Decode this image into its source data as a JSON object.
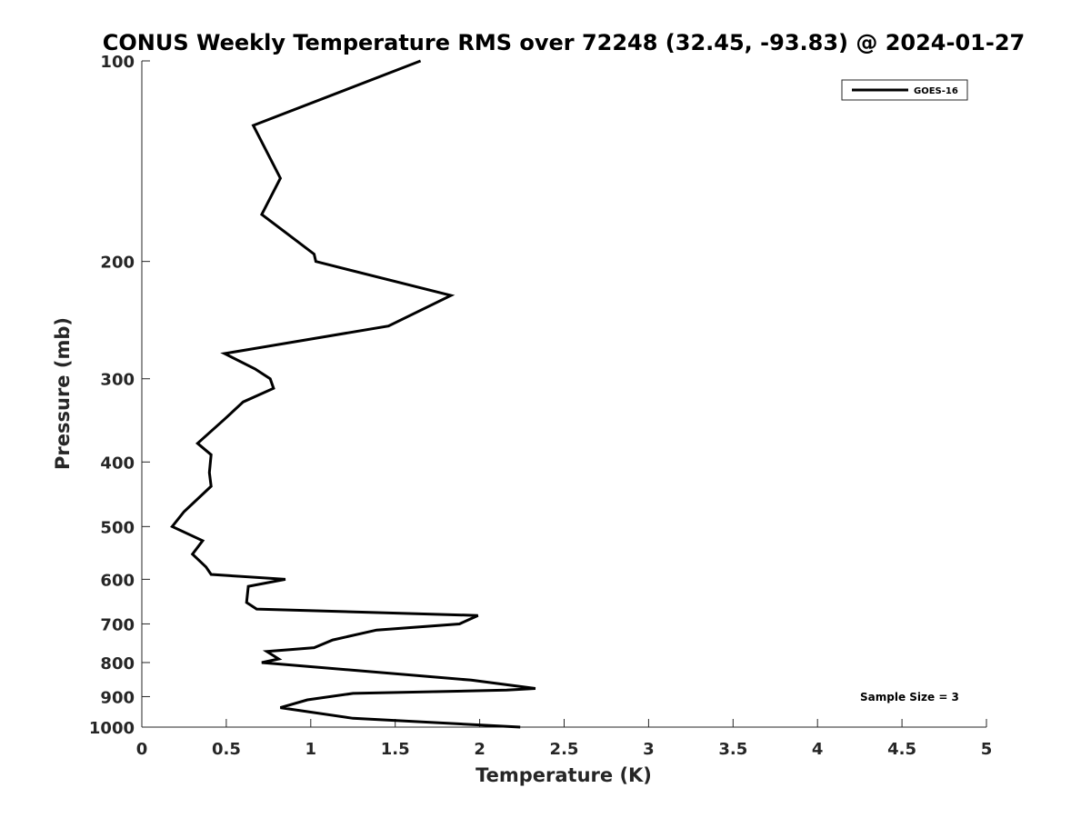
{
  "chart_data": {
    "type": "line",
    "title": "CONUS Weekly Temperature RMS over 72248 (32.45, -93.83) @ 2024-01-27",
    "xlabel": "Temperature (K)",
    "ylabel": "Pressure (mb)",
    "xlim": [
      0,
      5
    ],
    "ylim": [
      100,
      1000
    ],
    "y_scale": "log",
    "y_reversed": true,
    "grid": false,
    "legend_position": "top-right",
    "x_ticks": [
      0,
      0.5,
      1,
      1.5,
      2,
      2.5,
      3,
      3.5,
      4,
      4.5,
      5
    ],
    "x_tick_labels": [
      "0",
      "0.5",
      "1",
      "1.5",
      "2",
      "2.5",
      "3",
      "3.5",
      "4",
      "4.5",
      "5"
    ],
    "y_ticks": [
      100,
      200,
      300,
      400,
      500,
      600,
      700,
      800,
      900,
      1000
    ],
    "y_tick_labels": [
      "100",
      "200",
      "300",
      "400",
      "500",
      "600",
      "700",
      "800",
      "900",
      "1000"
    ],
    "annotation": "Sample Size = 3",
    "series": [
      {
        "name": "GOES-16",
        "color": "#000000",
        "points": [
          [
            1.65,
            100
          ],
          [
            0.66,
            125
          ],
          [
            0.82,
            150
          ],
          [
            0.71,
            170
          ],
          [
            1.02,
            195
          ],
          [
            1.03,
            200
          ],
          [
            1.83,
            225
          ],
          [
            1.46,
            250
          ],
          [
            0.49,
            275
          ],
          [
            0.67,
            290
          ],
          [
            0.76,
            300
          ],
          [
            0.78,
            310
          ],
          [
            0.6,
            325
          ],
          [
            0.49,
            345
          ],
          [
            0.33,
            375
          ],
          [
            0.41,
            390
          ],
          [
            0.4,
            415
          ],
          [
            0.41,
            435
          ],
          [
            0.25,
            475
          ],
          [
            0.18,
            500
          ],
          [
            0.36,
            525
          ],
          [
            0.3,
            550
          ],
          [
            0.38,
            575
          ],
          [
            0.41,
            590
          ],
          [
            0.85,
            600
          ],
          [
            0.63,
            615
          ],
          [
            0.62,
            650
          ],
          [
            0.68,
            665
          ],
          [
            1.99,
            680
          ],
          [
            1.88,
            700
          ],
          [
            1.39,
            715
          ],
          [
            1.13,
            740
          ],
          [
            1.02,
            760
          ],
          [
            0.74,
            770
          ],
          [
            0.81,
            790
          ],
          [
            0.71,
            800
          ],
          [
            1.95,
            850
          ],
          [
            2.33,
            875
          ],
          [
            2.16,
            880
          ],
          [
            1.25,
            890
          ],
          [
            0.98,
            910
          ],
          [
            0.82,
            935
          ],
          [
            1.25,
            970
          ],
          [
            2.24,
            1000
          ]
        ]
      }
    ]
  }
}
